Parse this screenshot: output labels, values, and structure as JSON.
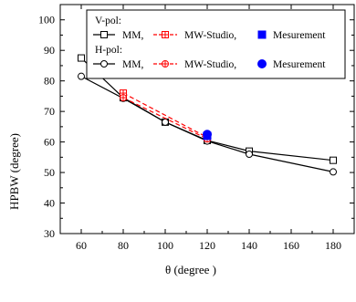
{
  "chart_data": {
    "type": "line",
    "xlabel": "θ (degree )",
    "ylabel": "HPBW  (degree)",
    "xlim": [
      50,
      190
    ],
    "ylim": [
      30,
      105
    ],
    "xticks": [
      60,
      80,
      100,
      120,
      140,
      160,
      180
    ],
    "yticks": [
      30,
      40,
      50,
      60,
      70,
      80,
      90,
      100
    ],
    "legend": {
      "placement": "top",
      "groups": [
        {
          "header": "V-pol:",
          "entries": [
            "MM,",
            "MW-Studio,",
            "Mesurement"
          ]
        },
        {
          "header": "H-pol:",
          "entries": [
            "MM,",
            "MW-Studio,",
            "Mesurement"
          ]
        }
      ]
    },
    "series": [
      {
        "name": "MM,",
        "group": "V-pol:",
        "style": "line-open-square",
        "color": "#000000",
        "x": [
          60,
          80,
          100,
          120,
          140,
          180
        ],
        "y": [
          87.5,
          74.5,
          66.5,
          60.5,
          57,
          54
        ]
      },
      {
        "name": "MM,",
        "group": "H-pol:",
        "style": "line-open-circle",
        "color": "#000000",
        "x": [
          60,
          80,
          100,
          120,
          140,
          180
        ],
        "y": [
          81.5,
          74.3,
          66.5,
          60.3,
          56,
          50.2
        ]
      },
      {
        "name": "MW-Studio,",
        "group": "V-pol:",
        "style": "dash-crossed-square",
        "color": "#ff0000",
        "x": [
          80,
          120
        ],
        "y": [
          76,
          61.5
        ]
      },
      {
        "name": "MW-Studio,",
        "group": "H-pol:",
        "style": "dash-crossed-circle",
        "color": "#ff0000",
        "x": [
          80,
          120
        ],
        "y": [
          74.5,
          61
        ]
      },
      {
        "name": "Mesurement",
        "group": "V-pol:",
        "style": "filled-square",
        "color": "#0000ff",
        "x": [
          120
        ],
        "y": [
          62
        ]
      },
      {
        "name": "Mesurement",
        "group": "H-pol:",
        "style": "filled-circle",
        "color": "#0000ff",
        "x": [
          120
        ],
        "y": [
          62.5
        ]
      }
    ]
  }
}
